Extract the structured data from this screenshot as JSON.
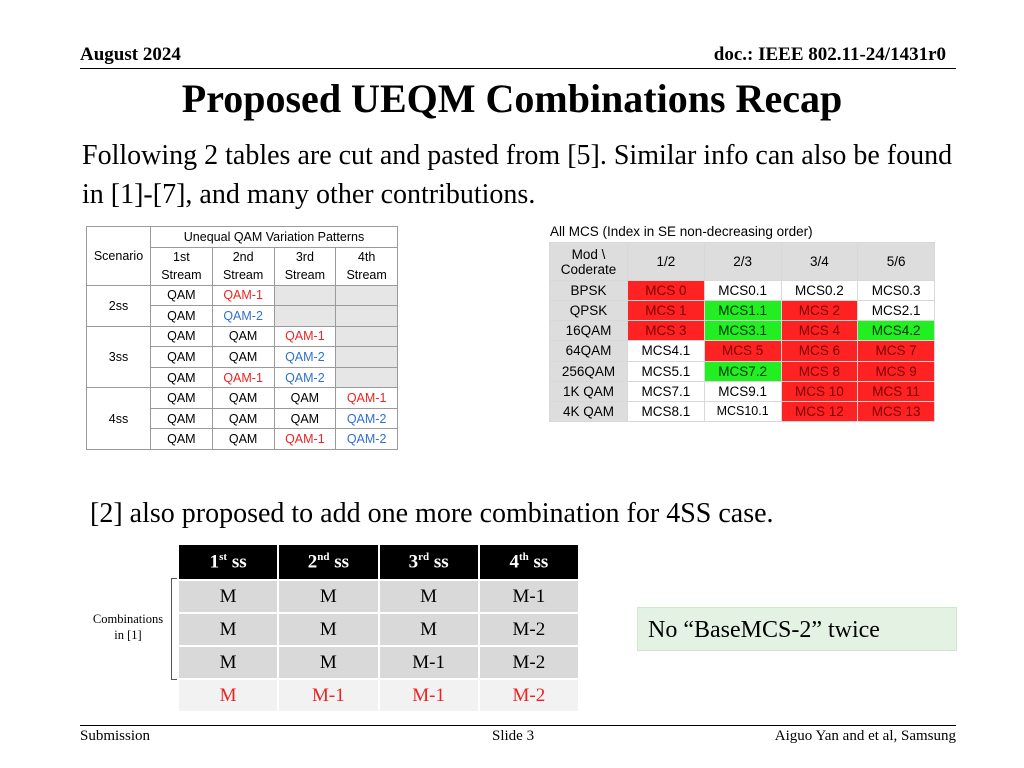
{
  "header": {
    "date": "August 2024",
    "doc": "doc.: IEEE 802.11-24/1431r0"
  },
  "title": "Proposed UEQM Combinations Recap",
  "intro": "Following 2 tables are cut and pasted from [5]. Similar info can also be found in [1]-[7], and many other contributions.",
  "table1": {
    "scenario_header": "Scenario",
    "group_header": "Unequal QAM Variation Patterns",
    "stream_headers": [
      [
        "1st",
        "Stream"
      ],
      [
        "2nd",
        "Stream"
      ],
      [
        "3rd",
        "Stream"
      ],
      [
        "4th",
        "Stream"
      ]
    ],
    "scenarios": [
      "2ss",
      "3ss",
      "4ss"
    ],
    "rows": [
      [
        "QAM",
        "QAM-1",
        "",
        ""
      ],
      [
        "QAM",
        "QAM-2",
        "",
        ""
      ],
      [
        "QAM",
        "QAM",
        "QAM-1",
        ""
      ],
      [
        "QAM",
        "QAM",
        "QAM-2",
        ""
      ],
      [
        "QAM",
        "QAM-1",
        "QAM-2",
        ""
      ],
      [
        "QAM",
        "QAM",
        "QAM",
        "QAM-1"
      ],
      [
        "QAM",
        "QAM",
        "QAM",
        "QAM-2"
      ],
      [
        "QAM",
        "QAM",
        "QAM-1",
        "QAM-2"
      ]
    ]
  },
  "table2": {
    "caption": "All MCS (Index in SE non-decreasing order)",
    "corner": [
      "Mod \\",
      "Coderate"
    ],
    "rates": [
      "1/2",
      "2/3",
      "3/4",
      "5/6"
    ],
    "rows": [
      {
        "mod": "BPSK",
        "cells": [
          "MCS 0",
          "MCS0.1",
          "MCS0.2",
          "MCS0.3"
        ]
      },
      {
        "mod": "QPSK",
        "cells": [
          "MCS 1",
          "MCS1.1",
          "MCS 2",
          "MCS2.1"
        ]
      },
      {
        "mod": "16QAM",
        "cells": [
          "MCS 3",
          "MCS3.1",
          "MCS 4",
          "MCS4.2"
        ]
      },
      {
        "mod": "64QAM",
        "cells": [
          "MCS4.1",
          "MCS 5",
          "MCS 6",
          "MCS 7"
        ]
      },
      {
        "mod": "256QAM",
        "cells": [
          "MCS5.1",
          "MCS7.2",
          "MCS 8",
          "MCS 9"
        ]
      },
      {
        "mod": "1K QAM",
        "cells": [
          "MCS7.1",
          "MCS9.1",
          "MCS 10",
          "MCS 11"
        ]
      },
      {
        "mod": "4K QAM",
        "cells": [
          "MCS8.1",
          "MCS10.1",
          "MCS 12",
          "MCS 13"
        ]
      }
    ],
    "colors": {
      "red": "#ff2222",
      "green": "#22ee22",
      "white": "#ffffff"
    }
  },
  "proposal": "[2] also proposed to add one more combination for 4SS case.",
  "table3": {
    "headers": [
      {
        "num": "1",
        "sup": "st",
        "unit": "ss"
      },
      {
        "num": "2",
        "sup": "nd",
        "unit": "ss"
      },
      {
        "num": "3",
        "sup": "rd",
        "unit": "ss"
      },
      {
        "num": "4",
        "sup": "th",
        "unit": "ss"
      }
    ],
    "rows": [
      [
        "M",
        "M",
        "M",
        "M-1"
      ],
      [
        "M",
        "M",
        "M",
        "M-2"
      ],
      [
        "M",
        "M",
        "M-1",
        "M-2"
      ],
      [
        "M",
        "M-1",
        "M-1",
        "M-2"
      ]
    ],
    "side_label": [
      "Combinations",
      "in [1]"
    ]
  },
  "note": "No “BaseMCS-2” twice",
  "footer": {
    "left": "Submission",
    "center": "Slide 3",
    "right": "Aiguo Yan and et al, Samsung"
  }
}
